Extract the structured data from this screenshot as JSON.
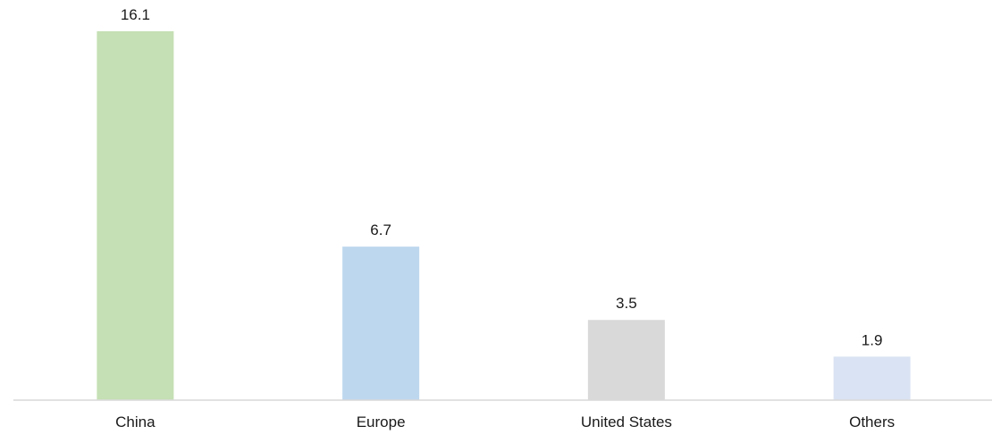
{
  "chart_data": {
    "type": "bar",
    "title": "",
    "xlabel": "",
    "ylabel": "",
    "categories": [
      "China",
      "Europe",
      "United States",
      "Others"
    ],
    "values": [
      16.1,
      6.7,
      3.5,
      1.9
    ],
    "data_labels": [
      "16.1",
      "6.7",
      "3.5",
      "1.9"
    ],
    "colors": [
      "#c5e0b4",
      "#bdd7ee",
      "#d9d9d9",
      "#dae3f3"
    ],
    "axis_color": "#d9d9d9",
    "ylim": [
      0,
      16.1
    ],
    "grid": false,
    "legend": "none"
  }
}
